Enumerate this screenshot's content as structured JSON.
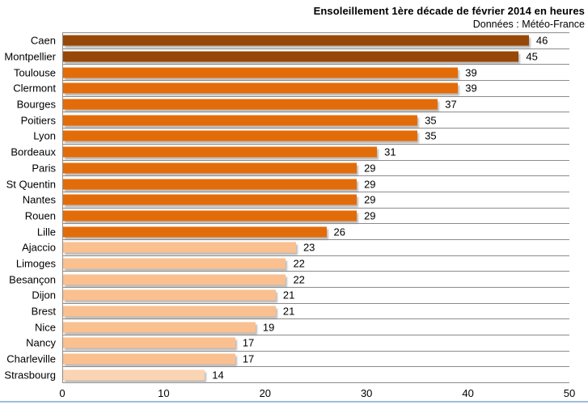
{
  "chart": {
    "title": "Ensoleillement 1ère décade de février 2014 en heures",
    "subtitle": "Données : Météo-France"
  },
  "chart_data": {
    "type": "bar",
    "orientation": "horizontal",
    "title": "Ensoleillement 1ère décade de février 2014 en heures",
    "subtitle": "Données : Météo-France",
    "categories": [
      "Caen",
      "Montpellier",
      "Toulouse",
      "Clermont",
      "Bourges",
      "Poitiers",
      "Lyon",
      "Bordeaux",
      "Paris",
      "St Quentin",
      "Nantes",
      "Rouen",
      "Lille",
      "Ajaccio",
      "Limoges",
      "Besançon",
      "Dijon",
      "Brest",
      "Nice",
      "Nancy",
      "Charleville",
      "Strasbourg"
    ],
    "values": [
      46,
      45,
      39,
      39,
      37,
      35,
      35,
      31,
      29,
      29,
      29,
      29,
      26,
      23,
      22,
      22,
      21,
      21,
      19,
      17,
      17,
      14
    ],
    "bar_colors": [
      "#974706",
      "#974706",
      "#E36C0A",
      "#E36C0A",
      "#E36C0A",
      "#E36C0A",
      "#E36C0A",
      "#E36C0A",
      "#E36C0A",
      "#E36C0A",
      "#E36C0A",
      "#E36C0A",
      "#E36C0A",
      "#FAC090",
      "#FAC090",
      "#FAC090",
      "#FAC090",
      "#FAC090",
      "#FAC090",
      "#FAC090",
      "#FAC090",
      "#FBD4B4"
    ],
    "value_labels_shown": true,
    "xlim": [
      0,
      50
    ],
    "x_ticks": [
      0,
      10,
      20,
      30,
      40,
      50
    ],
    "grid": "horizontal category separator lines only",
    "legend": "none",
    "styles": {
      "axis_color": "#8c8c8c",
      "bar_shadow_color": "#bcbcbc",
      "bottom_rule_color": "#a3bcdc",
      "background": "#ffffff",
      "palette": {
        "dark_brown": "#974706",
        "orange": "#E36C0A",
        "light_orange": "#FAC090",
        "pale_orange": "#FBD4B4"
      }
    }
  }
}
